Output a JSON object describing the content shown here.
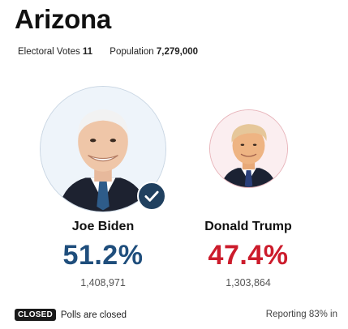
{
  "state": {
    "name": "Arizona"
  },
  "meta": {
    "electoral_label": "Electoral Votes",
    "electoral_value": "11",
    "population_label": "Population",
    "population_value": "7,279,000"
  },
  "candidates": [
    {
      "name": "Joe Biden",
      "percent": "51.2%",
      "votes": "1,408,971",
      "winner": true,
      "color": "#1f4e7c",
      "icon": "checkmark-icon"
    },
    {
      "name": "Donald Trump",
      "percent": "47.4%",
      "votes": "1,303,864",
      "winner": false,
      "color": "#cc1c2c"
    }
  ],
  "status": {
    "badge": "CLOSED",
    "text": "Polls are closed",
    "reporting": "Reporting 83% in"
  }
}
